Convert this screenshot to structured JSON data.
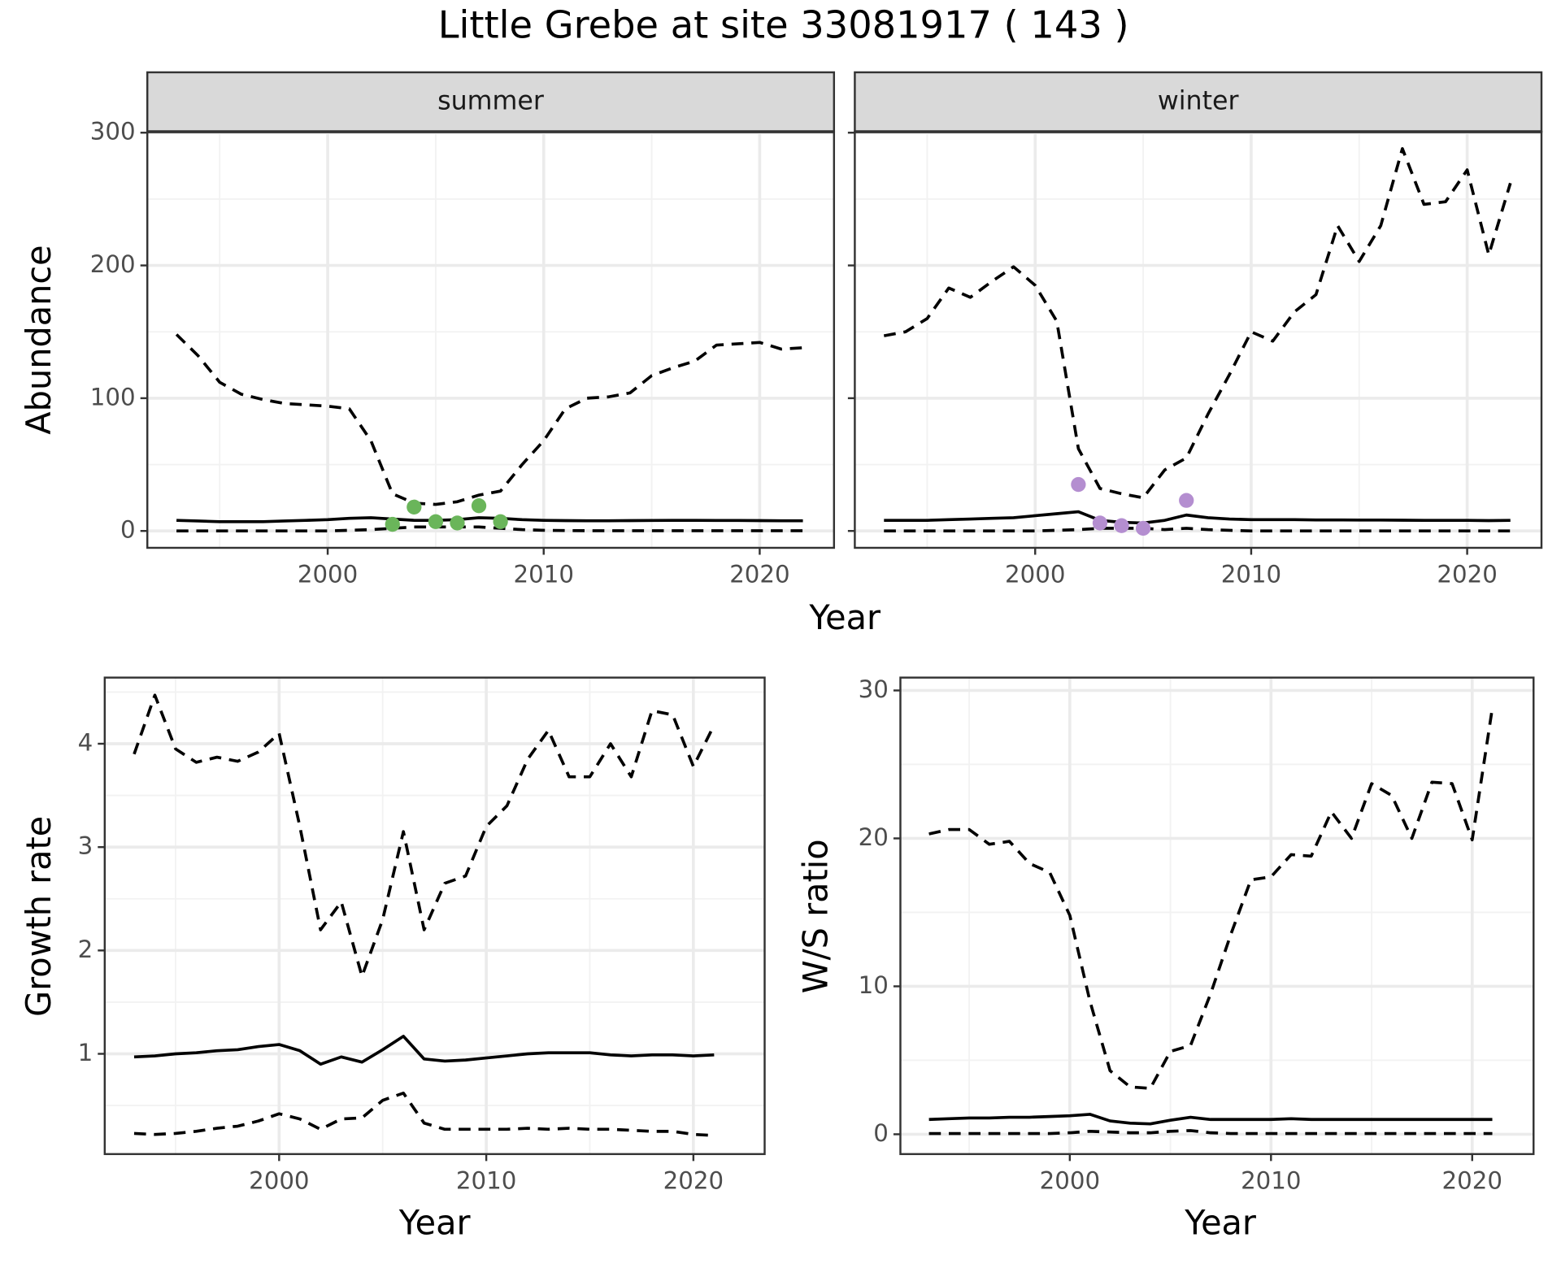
{
  "title": "Little Grebe at site 33081917 ( 143 )",
  "chart_data": [
    {
      "type": "line",
      "strip": "summer",
      "xlabel": "Year",
      "ylabel": "Abundance",
      "grid": true,
      "ytick_labels": true,
      "xlim": [
        1991.65,
        2023.44
      ],
      "ylim": [
        -12.7,
        300.7
      ],
      "xticks": [
        2000,
        2010,
        2020
      ],
      "yticks": [
        0,
        100,
        200,
        300
      ],
      "x": [
        1993,
        1994,
        1995,
        1996,
        1997,
        1998,
        1999,
        2000,
        2001,
        2002,
        2003,
        2004,
        2005,
        2006,
        2007,
        2008,
        2009,
        2010,
        2011,
        2012,
        2013,
        2014,
        2015,
        2016,
        2017,
        2018,
        2019,
        2020,
        2021,
        2022
      ],
      "series": [
        {
          "style": "solid",
          "color": "#000000",
          "values": [
            8,
            7.5,
            7,
            7,
            7,
            7.5,
            8,
            8.5,
            9.5,
            10,
            9,
            8,
            8,
            8.5,
            10,
            9.5,
            8.5,
            8,
            7.8,
            7.7,
            7.7,
            7.8,
            7.9,
            8,
            8,
            7.9,
            7.9,
            7.8,
            7.7,
            7.7
          ]
        },
        {
          "style": "dashed",
          "color": "#000000",
          "values": [
            0,
            0,
            0,
            0,
            0,
            0,
            0,
            0,
            0.5,
            1,
            2,
            3,
            3,
            3,
            3,
            2,
            1,
            0.5,
            0.3,
            0.2,
            0.2,
            0.2,
            0.2,
            0.2,
            0.2,
            0.2,
            0.2,
            0.2,
            0.2,
            0.2
          ]
        },
        {
          "style": "dashed",
          "color": "#000000",
          "values": [
            148,
            132,
            112,
            103,
            99,
            96,
            95,
            94,
            92,
            68,
            28,
            21,
            20,
            22,
            27,
            30,
            50,
            68,
            92,
            100,
            101,
            104,
            117,
            123,
            128,
            140,
            141,
            142,
            137,
            138
          ]
        },
        {
          "style": "points",
          "color": "#6ab55a",
          "x": [
            2003,
            2004,
            2005,
            2006,
            2007,
            2008
          ],
          "values": [
            5,
            18,
            7,
            6,
            19,
            7
          ]
        }
      ]
    },
    {
      "type": "line",
      "strip": "winter",
      "grid": true,
      "ytick_labels": false,
      "xlim": [
        1991.65,
        2023.44
      ],
      "ylim": [
        -12.7,
        300.7
      ],
      "xticks": [
        2000,
        2010,
        2020
      ],
      "yticks": [
        0,
        100,
        200,
        300
      ],
      "x": [
        1993,
        1994,
        1995,
        1996,
        1997,
        1998,
        1999,
        2000,
        2001,
        2002,
        2003,
        2004,
        2005,
        2006,
        2007,
        2008,
        2009,
        2010,
        2011,
        2012,
        2013,
        2014,
        2015,
        2016,
        2017,
        2018,
        2019,
        2020,
        2021,
        2022
      ],
      "series": [
        {
          "style": "solid",
          "color": "#000000",
          "values": [
            8,
            8,
            8,
            8.5,
            9,
            9.5,
            10,
            11.5,
            13,
            14.5,
            8,
            6.5,
            6,
            8,
            12,
            10,
            9,
            8.5,
            8.5,
            8.5,
            8.3,
            8.3,
            8.2,
            8.2,
            8.1,
            8,
            8,
            8,
            7.8,
            8
          ]
        },
        {
          "style": "dashed",
          "color": "#000000",
          "values": [
            0,
            0,
            0,
            0,
            0,
            0,
            0,
            0,
            0.5,
            1,
            2,
            2,
            2,
            1,
            2,
            1,
            0.5,
            0,
            0,
            0,
            0,
            0,
            0,
            0,
            0,
            0,
            0,
            0,
            0,
            0
          ]
        },
        {
          "style": "dashed",
          "color": "#000000",
          "values": [
            147,
            150,
            160,
            183,
            176,
            188,
            199,
            185,
            158,
            62,
            32,
            28,
            25,
            46,
            55,
            88,
            118,
            150,
            143,
            165,
            178,
            230,
            203,
            230,
            288,
            246,
            248,
            272,
            208,
            262
          ]
        },
        {
          "style": "points",
          "color": "#b48ed0",
          "x": [
            2002,
            2003,
            2004,
            2005,
            2007
          ],
          "values": [
            35,
            6,
            4,
            2,
            23
          ]
        }
      ]
    },
    {
      "type": "line",
      "xlabel": "Year",
      "ylabel": "Growth rate",
      "grid": true,
      "ytick_labels": true,
      "xlim": [
        1991.58,
        2023.44
      ],
      "ylim": [
        0.03,
        4.64
      ],
      "xticks": [
        2000,
        2010,
        2020
      ],
      "yticks": [
        1,
        2,
        3,
        4
      ],
      "x": [
        1993,
        1994,
        1995,
        1996,
        1997,
        1998,
        1999,
        2000,
        2001,
        2002,
        2003,
        2004,
        2005,
        2006,
        2007,
        2008,
        2009,
        2010,
        2011,
        2012,
        2013,
        2014,
        2015,
        2016,
        2017,
        2018,
        2019,
        2020,
        2021
      ],
      "series": [
        {
          "style": "solid",
          "color": "#000000",
          "values": [
            0.97,
            0.98,
            1.0,
            1.01,
            1.03,
            1.04,
            1.07,
            1.09,
            1.03,
            0.9,
            0.97,
            0.92,
            1.04,
            1.17,
            0.95,
            0.93,
            0.94,
            0.96,
            0.98,
            1.0,
            1.01,
            1.01,
            1.01,
            0.99,
            0.98,
            0.99,
            0.99,
            0.98,
            0.99
          ]
        },
        {
          "style": "dashed",
          "color": "#000000",
          "values": [
            0.23,
            0.22,
            0.23,
            0.25,
            0.28,
            0.3,
            0.35,
            0.42,
            0.37,
            0.27,
            0.37,
            0.38,
            0.55,
            0.62,
            0.33,
            0.27,
            0.27,
            0.27,
            0.27,
            0.28,
            0.27,
            0.28,
            0.27,
            0.27,
            0.26,
            0.25,
            0.25,
            0.22,
            0.21
          ]
        },
        {
          "style": "dashed",
          "color": "#000000",
          "values": [
            3.9,
            4.47,
            3.95,
            3.82,
            3.87,
            3.83,
            3.92,
            4.1,
            3.2,
            2.2,
            2.47,
            1.75,
            2.3,
            3.15,
            2.2,
            2.65,
            2.72,
            3.2,
            3.4,
            3.85,
            4.13,
            3.68,
            3.68,
            4.0,
            3.68,
            4.32,
            4.28,
            3.78,
            4.18
          ]
        }
      ]
    },
    {
      "type": "line",
      "xlabel": "Year",
      "ylabel": "W/S ratio",
      "grid": true,
      "ytick_labels": true,
      "xlim": [
        1991.58,
        2023.05
      ],
      "ylim": [
        -1.34,
        30.87
      ],
      "xticks": [
        2000,
        2010,
        2020
      ],
      "yticks": [
        0,
        10,
        20,
        30
      ],
      "x": [
        1993,
        1994,
        1995,
        1996,
        1997,
        1998,
        1999,
        2000,
        2001,
        2002,
        2003,
        2004,
        2005,
        2006,
        2007,
        2008,
        2009,
        2010,
        2011,
        2012,
        2013,
        2014,
        2015,
        2016,
        2017,
        2018,
        2019,
        2020,
        2021
      ],
      "series": [
        {
          "style": "solid",
          "color": "#000000",
          "values": [
            1.0,
            1.05,
            1.1,
            1.1,
            1.15,
            1.15,
            1.2,
            1.25,
            1.35,
            0.9,
            0.75,
            0.7,
            0.95,
            1.15,
            1.0,
            1.0,
            1.0,
            1.0,
            1.05,
            1.0,
            1.0,
            1.0,
            1.0,
            1.0,
            1.0,
            1.0,
            1.0,
            1.0,
            1.0
          ]
        },
        {
          "style": "dashed",
          "color": "#000000",
          "values": [
            0.05,
            0.05,
            0.05,
            0.05,
            0.05,
            0.05,
            0.05,
            0.1,
            0.2,
            0.15,
            0.1,
            0.1,
            0.2,
            0.25,
            0.1,
            0.05,
            0.05,
            0.05,
            0.05,
            0.05,
            0.05,
            0.05,
            0.05,
            0.05,
            0.05,
            0.05,
            0.05,
            0.05,
            0.05
          ]
        },
        {
          "style": "dashed",
          "color": "#000000",
          "values": [
            20.3,
            20.6,
            20.6,
            19.6,
            19.8,
            18.3,
            17.7,
            14.8,
            9,
            4.3,
            3.2,
            3.1,
            5.6,
            6,
            9.5,
            13.5,
            17.2,
            17.4,
            18.9,
            18.8,
            21.8,
            20,
            23.7,
            22.9,
            20,
            23.8,
            23.7,
            19.9,
            28.8
          ]
        }
      ]
    }
  ]
}
